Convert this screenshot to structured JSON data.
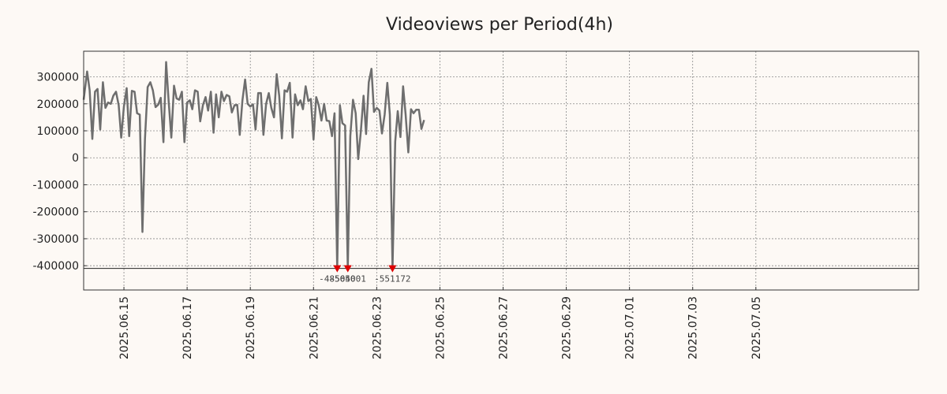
{
  "chart_data": {
    "type": "line",
    "title": "Videoviews per Period(4h)",
    "xlabel": "",
    "ylabel": "",
    "ylim": [
      -490000,
      395000
    ],
    "xlim": [
      -0.55,
      52.3
    ],
    "grid": true,
    "ylower_line": -410000,
    "yticks": [
      {
        "value": 300000,
        "label": "300000"
      },
      {
        "value": 200000,
        "label": "200000"
      },
      {
        "value": 100000,
        "label": "100000"
      },
      {
        "value": 0,
        "label": "0"
      },
      {
        "value": -100000,
        "label": "-100000"
      },
      {
        "value": -200000,
        "label": "-200000"
      },
      {
        "value": -300000,
        "label": "-300000"
      },
      {
        "value": -400000,
        "label": "-400000"
      }
    ],
    "xticks": [
      {
        "value": 2,
        "label": "2025.06.15"
      },
      {
        "value": 6,
        "label": "2025.06.17"
      },
      {
        "value": 10,
        "label": "2025.06.19"
      },
      {
        "value": 14,
        "label": "2025.06.21"
      },
      {
        "value": 18,
        "label": "2025.06.23"
      },
      {
        "value": 22,
        "label": "2025.06.25"
      },
      {
        "value": 26,
        "label": "2025.06.27"
      },
      {
        "value": 30,
        "label": "2025.06.29"
      },
      {
        "value": 34,
        "label": "2025.07.01"
      },
      {
        "value": 38,
        "label": "2025.07.03"
      },
      {
        "value": 42,
        "label": "2025.07.05"
      }
    ],
    "series": [
      {
        "name": "Videoviews",
        "color": "#6e6e6e",
        "points": [
          [
            -0.55,
            215000
          ],
          [
            -0.33,
            320000
          ],
          [
            -0.17,
            250000
          ],
          [
            0.0,
            70000
          ],
          [
            0.17,
            245000
          ],
          [
            0.33,
            255000
          ],
          [
            0.5,
            105000
          ],
          [
            0.67,
            280000
          ],
          [
            0.83,
            185000
          ],
          [
            1.0,
            205000
          ],
          [
            1.17,
            200000
          ],
          [
            1.33,
            230000
          ],
          [
            1.5,
            245000
          ],
          [
            1.67,
            195000
          ],
          [
            1.83,
            75000
          ],
          [
            2.0,
            190000
          ],
          [
            2.17,
            258000
          ],
          [
            2.33,
            80000
          ],
          [
            2.5,
            248000
          ],
          [
            2.67,
            245000
          ],
          [
            2.83,
            165000
          ],
          [
            3.0,
            160000
          ],
          [
            3.17,
            -275000
          ],
          [
            3.33,
            70000
          ],
          [
            3.5,
            262000
          ],
          [
            3.67,
            280000
          ],
          [
            3.83,
            250000
          ],
          [
            4.0,
            188000
          ],
          [
            4.17,
            197000
          ],
          [
            4.33,
            222000
          ],
          [
            4.5,
            58000
          ],
          [
            4.67,
            355000
          ],
          [
            4.83,
            210000
          ],
          [
            5.0,
            75000
          ],
          [
            5.17,
            267000
          ],
          [
            5.33,
            220000
          ],
          [
            5.5,
            215000
          ],
          [
            5.67,
            245000
          ],
          [
            5.83,
            58000
          ],
          [
            6.0,
            205000
          ],
          [
            6.17,
            213000
          ],
          [
            6.33,
            180000
          ],
          [
            6.5,
            250000
          ],
          [
            6.67,
            245000
          ],
          [
            6.83,
            135000
          ],
          [
            7.0,
            195000
          ],
          [
            7.17,
            225000
          ],
          [
            7.33,
            175000
          ],
          [
            7.5,
            245000
          ],
          [
            7.67,
            93000
          ],
          [
            7.83,
            235000
          ],
          [
            8.0,
            150000
          ],
          [
            8.17,
            245000
          ],
          [
            8.33,
            210000
          ],
          [
            8.5,
            233000
          ],
          [
            8.67,
            228000
          ],
          [
            8.83,
            168000
          ],
          [
            9.0,
            195000
          ],
          [
            9.17,
            196000
          ],
          [
            9.33,
            85000
          ],
          [
            9.5,
            213000
          ],
          [
            9.67,
            290000
          ],
          [
            9.83,
            200000
          ],
          [
            10.0,
            190000
          ],
          [
            10.17,
            198000
          ],
          [
            10.33,
            105000
          ],
          [
            10.5,
            240000
          ],
          [
            10.67,
            240000
          ],
          [
            10.83,
            85000
          ],
          [
            11.0,
            200000
          ],
          [
            11.17,
            240000
          ],
          [
            11.33,
            185000
          ],
          [
            11.5,
            150000
          ],
          [
            11.67,
            310000
          ],
          [
            11.83,
            230000
          ],
          [
            12.0,
            72000
          ],
          [
            12.17,
            250000
          ],
          [
            12.33,
            245000
          ],
          [
            12.5,
            278000
          ],
          [
            12.67,
            75000
          ],
          [
            12.83,
            235000
          ],
          [
            13.0,
            195000
          ],
          [
            13.17,
            213000
          ],
          [
            13.33,
            180000
          ],
          [
            13.5,
            265000
          ],
          [
            13.67,
            210000
          ],
          [
            13.83,
            218000
          ],
          [
            14.0,
            68000
          ],
          [
            14.17,
            225000
          ],
          [
            14.33,
            195000
          ],
          [
            14.5,
            138000
          ],
          [
            14.67,
            200000
          ],
          [
            14.83,
            138000
          ],
          [
            15.0,
            136000
          ],
          [
            15.17,
            80000
          ],
          [
            15.33,
            165000
          ],
          [
            15.5,
            -410000
          ],
          [
            15.67,
            195000
          ],
          [
            15.83,
            128000
          ],
          [
            16.0,
            120000
          ],
          [
            16.17,
            -410000
          ],
          [
            16.33,
            80000
          ],
          [
            16.5,
            215000
          ],
          [
            16.67,
            165000
          ],
          [
            16.83,
            -5000
          ],
          [
            17.0,
            100000
          ],
          [
            17.17,
            230000
          ],
          [
            17.33,
            88000
          ],
          [
            17.5,
            280000
          ],
          [
            17.67,
            330000
          ],
          [
            17.83,
            170000
          ],
          [
            18.0,
            185000
          ],
          [
            18.17,
            175000
          ],
          [
            18.33,
            90000
          ],
          [
            18.5,
            160000
          ],
          [
            18.67,
            278000
          ],
          [
            18.83,
            160000
          ],
          [
            19.0,
            -410000
          ],
          [
            19.17,
            60000
          ],
          [
            19.33,
            173000
          ],
          [
            19.5,
            77000
          ],
          [
            19.67,
            265000
          ],
          [
            19.83,
            160000
          ],
          [
            20.0,
            20000
          ],
          [
            20.17,
            180000
          ],
          [
            20.33,
            165000
          ],
          [
            20.5,
            178000
          ],
          [
            20.67,
            178000
          ],
          [
            20.83,
            107000
          ],
          [
            21.0,
            140000
          ]
        ]
      }
    ],
    "annotations": [
      {
        "x": 15.5,
        "y": -410000,
        "label": "-485650",
        "color": "#dd0000"
      },
      {
        "x": 16.17,
        "y": -410000,
        "label": "-504001",
        "color": "#dd0000"
      },
      {
        "x": 19.0,
        "y": -410000,
        "label": "-551172",
        "color": "#dd0000"
      }
    ]
  }
}
